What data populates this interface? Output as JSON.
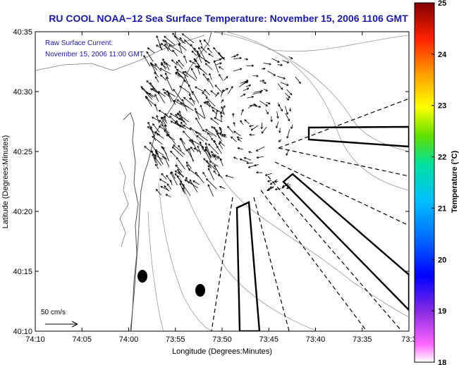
{
  "title": "RU COOL  NOAA−12  Sea Surface Temperature:  November 15, 2006 1106 GMT",
  "annotation": {
    "line1": "Raw Surface Current:",
    "line2": "November 15, 2006 11:00 GMT"
  },
  "scale": {
    "label": "50 cm/s"
  },
  "axes": {
    "xlabel": "Longitude (Degrees:Minutes)",
    "ylabel": "Latitude (Degrees:Minutes)",
    "xticks": [
      "74:10",
      "74:05",
      "74:00",
      "73:55",
      "73:50",
      "73:45",
      "73:40",
      "73:35",
      "73:3"
    ],
    "yticks": [
      "40:35",
      "40:30",
      "40:25",
      "40:20",
      "40:15",
      "40:10"
    ]
  },
  "colorbar": {
    "label": "Temperature (°C)",
    "ticks": [
      "25",
      "24",
      "23",
      "22",
      "21",
      "20",
      "19",
      "18"
    ],
    "min": 18,
    "max": 25
  },
  "colors": {
    "title": "#1a1aa0",
    "annotation": "#1a1aa0",
    "frame": "#000000",
    "contour": "#888888"
  }
}
